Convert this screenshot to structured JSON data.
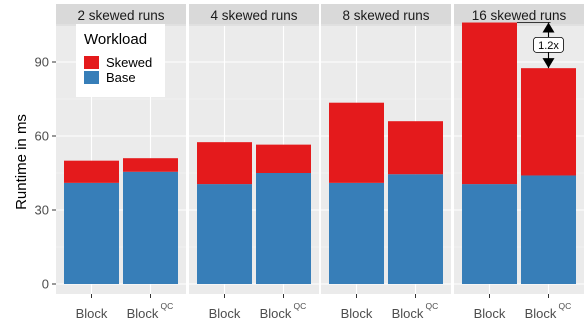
{
  "chart_data": {
    "type": "bar",
    "stacked": true,
    "facets": [
      "2 skewed runs",
      "4 skewed runs",
      "8 skewed runs",
      "16 skewed runs"
    ],
    "categories": [
      {
        "label": "Block",
        "superscript": ""
      },
      {
        "label": "Block",
        "superscript": "QC"
      }
    ],
    "series": [
      {
        "name": "Base",
        "color": "#377eb8",
        "values": [
          [
            41,
            45.5
          ],
          [
            40.5,
            45
          ],
          [
            41,
            44.5
          ],
          [
            40.5,
            44
          ]
        ]
      },
      {
        "name": "Skewed",
        "color": "#e41a1c",
        "values": [
          [
            9,
            5.5
          ],
          [
            17,
            11.5
          ],
          [
            32.5,
            21.5
          ],
          [
            65.5,
            43.5
          ]
        ]
      }
    ],
    "ylabel": "Runtime in ms",
    "yticks": [
      0,
      30,
      60,
      90
    ],
    "ylim": [
      0,
      110
    ],
    "legend": {
      "title": "Workload",
      "entries": [
        "Skewed",
        "Base"
      ],
      "position": "top-left"
    },
    "annotation": {
      "text": "1.2x",
      "facet": 3
    },
    "grid": true
  }
}
